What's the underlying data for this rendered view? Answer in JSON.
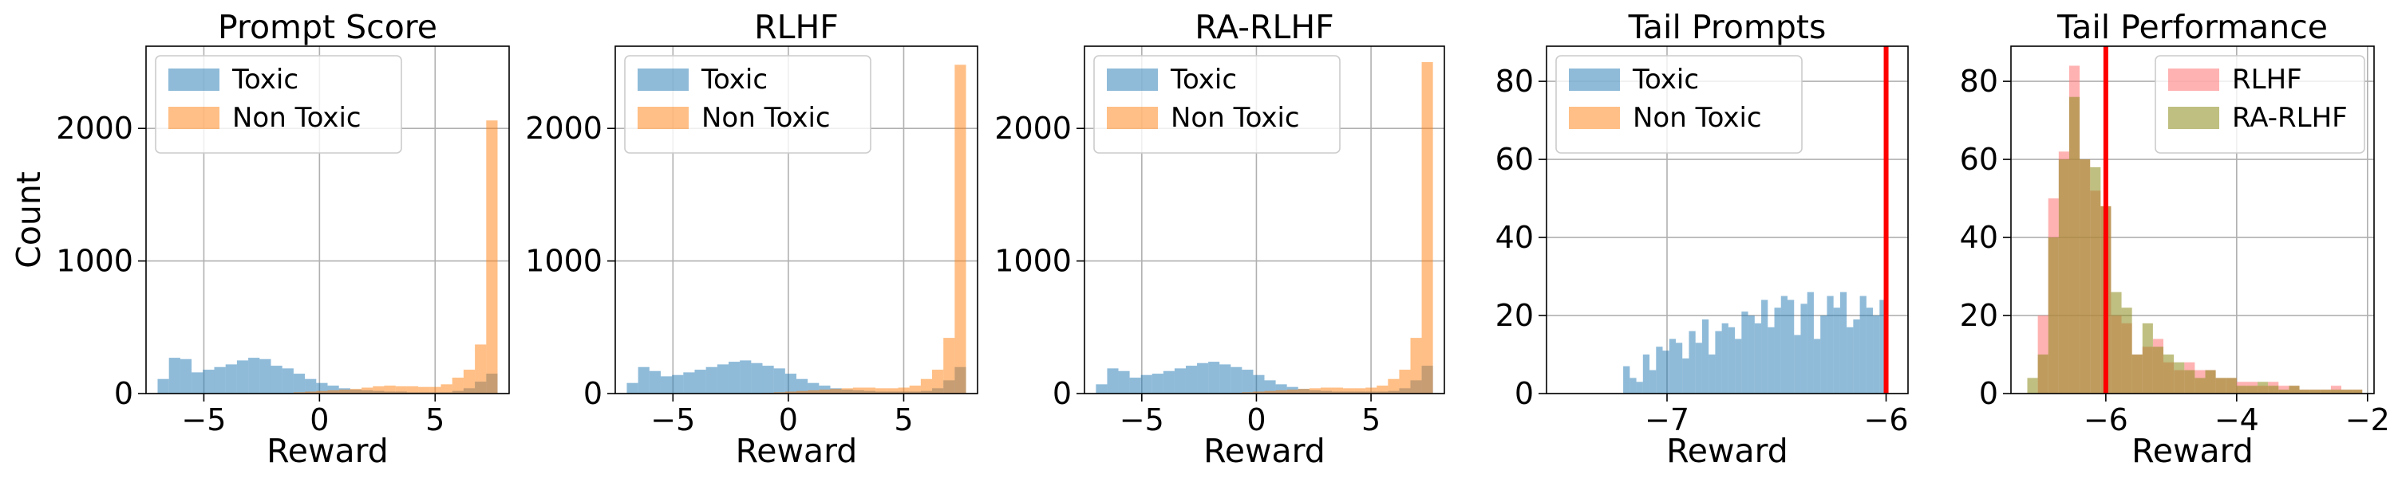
{
  "chart_data": [
    {
      "type": "bar",
      "title": "Prompt Score",
      "xlabel": "Reward",
      "ylabel": "Count",
      "xlim": [
        -7.5,
        8.2
      ],
      "ylim": [
        0,
        2620
      ],
      "xticks": [
        -5,
        0,
        5
      ],
      "xtick_labels": [
        "−5",
        "0",
        "5"
      ],
      "yticks": [
        0,
        1000,
        2000
      ],
      "ytick_labels": [
        "0",
        "1000",
        "2000"
      ],
      "grid": true,
      "legend": "top-left",
      "bin_start": -7.0,
      "bin_width": 0.49,
      "series": [
        {
          "name": "Toxic",
          "color": "#1f77b4",
          "opacity": 0.5,
          "values": [
            110,
            270,
            260,
            160,
            180,
            200,
            220,
            250,
            270,
            260,
            210,
            190,
            150,
            110,
            80,
            60,
            40,
            30,
            25,
            20,
            15,
            15,
            10,
            10,
            10,
            10,
            20,
            40,
            90,
            150
          ]
        },
        {
          "name": "Non Toxic",
          "color": "#ff7f0e",
          "opacity": 0.5,
          "values": [
            0,
            0,
            0,
            0,
            0,
            0,
            0,
            0,
            0,
            0,
            0,
            0,
            10,
            15,
            20,
            25,
            30,
            35,
            45,
            55,
            60,
            55,
            55,
            50,
            50,
            70,
            120,
            180,
            370,
            2060
          ]
        }
      ]
    },
    {
      "type": "bar",
      "title": "RLHF",
      "xlabel": "Reward",
      "ylabel": "",
      "xlim": [
        -7.5,
        8.2
      ],
      "ylim": [
        0,
        2620
      ],
      "xticks": [
        -5,
        0,
        5
      ],
      "xtick_labels": [
        "−5",
        "0",
        "5"
      ],
      "yticks": [
        0,
        1000,
        2000
      ],
      "ytick_labels": [
        "0",
        "1000",
        "2000"
      ],
      "grid": true,
      "legend": "top-left",
      "bin_start": -7.0,
      "bin_width": 0.49,
      "series": [
        {
          "name": "Toxic",
          "color": "#1f77b4",
          "opacity": 0.5,
          "values": [
            80,
            200,
            170,
            130,
            140,
            160,
            180,
            200,
            220,
            240,
            250,
            230,
            210,
            190,
            150,
            110,
            80,
            60,
            40,
            30,
            25,
            20,
            15,
            15,
            15,
            15,
            20,
            40,
            100,
            200
          ]
        },
        {
          "name": "Non Toxic",
          "color": "#ff7f0e",
          "opacity": 0.5,
          "values": [
            0,
            0,
            0,
            0,
            0,
            0,
            0,
            0,
            0,
            0,
            0,
            0,
            5,
            10,
            15,
            20,
            25,
            30,
            35,
            40,
            45,
            45,
            40,
            40,
            45,
            60,
            110,
            180,
            420,
            2480
          ]
        }
      ]
    },
    {
      "type": "bar",
      "title": "RA-RLHF",
      "xlabel": "Reward",
      "ylabel": "",
      "xlim": [
        -7.5,
        8.2
      ],
      "ylim": [
        0,
        2620
      ],
      "xticks": [
        -5,
        0,
        5
      ],
      "xtick_labels": [
        "−5",
        "0",
        "5"
      ],
      "yticks": [
        0,
        1000,
        2000
      ],
      "ytick_labels": [
        "0",
        "1000",
        "2000"
      ],
      "grid": true,
      "legend": "top-left",
      "bin_start": -7.0,
      "bin_width": 0.49,
      "series": [
        {
          "name": "Toxic",
          "color": "#1f77b4",
          "opacity": 0.5,
          "values": [
            70,
            190,
            170,
            120,
            140,
            150,
            170,
            190,
            210,
            230,
            240,
            220,
            200,
            180,
            140,
            100,
            70,
            50,
            35,
            25,
            20,
            15,
            15,
            15,
            15,
            15,
            20,
            40,
            100,
            210
          ]
        },
        {
          "name": "Non Toxic",
          "color": "#ff7f0e",
          "opacity": 0.5,
          "values": [
            0,
            0,
            0,
            0,
            0,
            0,
            0,
            0,
            0,
            0,
            0,
            0,
            5,
            10,
            15,
            20,
            25,
            30,
            35,
            40,
            45,
            45,
            40,
            40,
            45,
            60,
            110,
            180,
            420,
            2500
          ]
        }
      ]
    },
    {
      "type": "bar",
      "title": "Tail Prompts",
      "xlabel": "Reward",
      "ylabel": "",
      "xlim": [
        -7.55,
        -5.9
      ],
      "ylim": [
        0,
        89
      ],
      "xticks": [
        -7,
        -6
      ],
      "xtick_labels": [
        "−7",
        "−6"
      ],
      "yticks": [
        0,
        20,
        40,
        60,
        80
      ],
      "ytick_labels": [
        "0",
        "20",
        "40",
        "60",
        "80"
      ],
      "grid": true,
      "legend": "top-left",
      "threshold": -6.0,
      "threshold_color": "#ff0000",
      "bin_start": -7.2,
      "bin_width": 0.03,
      "series": [
        {
          "name": "Toxic",
          "color": "#1f77b4",
          "opacity": 0.5,
          "values": [
            7,
            4,
            3,
            10,
            6,
            12,
            11,
            14,
            13,
            9,
            16,
            13,
            19,
            10,
            16,
            18,
            17,
            14,
            21,
            20,
            18,
            24,
            17,
            22,
            25,
            24,
            15,
            23,
            26,
            14,
            20,
            25,
            22,
            26,
            17,
            19,
            25,
            22,
            20,
            24
          ]
        },
        {
          "name": "Non Toxic",
          "color": "#ff7f0e",
          "opacity": 0.5,
          "values": [
            0,
            0,
            0,
            0,
            0,
            0,
            0,
            0,
            0,
            0,
            0,
            0,
            0,
            0,
            0,
            0,
            0,
            0,
            0,
            0,
            0,
            0,
            0,
            0,
            0,
            0,
            0,
            0,
            0,
            0,
            0,
            0,
            0,
            0,
            0,
            0,
            0,
            0,
            0,
            0
          ]
        }
      ]
    },
    {
      "type": "bar",
      "title": "Tail Performance",
      "xlabel": "Reward",
      "ylabel": "",
      "xlim": [
        -7.45,
        -1.9
      ],
      "ylim": [
        0,
        89
      ],
      "xticks": [
        -6,
        -4,
        -2
      ],
      "xtick_labels": [
        "−6",
        "−4",
        "−2"
      ],
      "yticks": [
        0,
        20,
        40,
        60,
        80
      ],
      "ytick_labels": [
        "0",
        "20",
        "40",
        "60",
        "80"
      ],
      "grid": true,
      "legend": "top-right",
      "threshold": -6.0,
      "threshold_color": "#ff0000",
      "bin_start": -7.2,
      "bin_width": 0.16,
      "series": [
        {
          "name": "RLHF",
          "color": "#ff7f7f",
          "opacity": 0.6,
          "values": [
            0,
            20,
            50,
            62,
            84,
            60,
            52,
            48,
            20,
            18,
            10,
            12,
            14,
            8,
            6,
            8,
            6,
            6,
            4,
            4,
            3,
            3,
            2,
            3,
            2,
            2,
            1,
            1,
            1,
            2,
            1,
            1
          ]
        },
        {
          "name": "RA-RLHF",
          "color": "#8b8b1a",
          "opacity": 0.55,
          "values": [
            4,
            10,
            40,
            60,
            76,
            60,
            58,
            48,
            26,
            22,
            10,
            18,
            12,
            10,
            8,
            6,
            4,
            6,
            4,
            4,
            2,
            2,
            3,
            2,
            1,
            2,
            1,
            1,
            1,
            1,
            1,
            1
          ]
        }
      ]
    }
  ]
}
